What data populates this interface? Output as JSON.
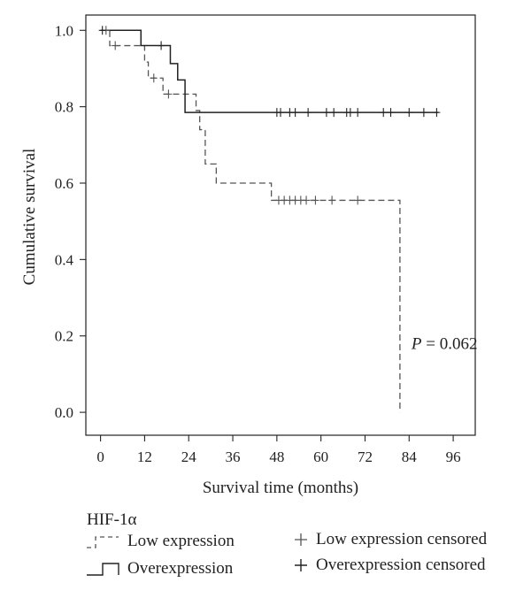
{
  "chart_data": {
    "type": "line",
    "subtype": "kaplan-meier",
    "xlabel": "Survival time (months)",
    "ylabel": "Cumulative survival",
    "xlim": [
      -4,
      102
    ],
    "ylim": [
      -0.06,
      1.04
    ],
    "xticks": [
      0,
      12,
      24,
      36,
      48,
      60,
      72,
      84,
      96
    ],
    "yticks": [
      0.0,
      0.2,
      0.4,
      0.6,
      0.8,
      1.0
    ],
    "ytick_labels": [
      "0.0",
      "0.2",
      "0.4",
      "0.6",
      "0.8",
      "1.0"
    ],
    "grid": false,
    "annotation": {
      "prefix": "P",
      "text": " = 0.062",
      "x": 81.5,
      "y": 0.18
    },
    "legend": {
      "title": "HIF-1α",
      "position": "bottom",
      "entries": [
        {
          "label": "Low expression",
          "symbol": "step",
          "series": 0
        },
        {
          "label": "Low expression censored",
          "symbol": "cross",
          "series": 0
        },
        {
          "label": "Overexpression",
          "symbol": "step",
          "series": 1
        },
        {
          "label": "Overexpression censored",
          "symbol": "cross",
          "series": 1
        }
      ]
    },
    "series": [
      {
        "name": "Low expression",
        "style": "dashed",
        "color": "#555555",
        "steps": [
          [
            0,
            1.0
          ],
          [
            2.5,
            0.96
          ],
          [
            12,
            0.917
          ],
          [
            13,
            0.875
          ],
          [
            17,
            0.833
          ],
          [
            26,
            0.79
          ],
          [
            27,
            0.74
          ],
          [
            28.5,
            0.65
          ],
          [
            31.5,
            0.6
          ],
          [
            46.5,
            0.555
          ],
          [
            81.5,
            0.0
          ]
        ],
        "censored": [
          [
            1.5,
            1.0
          ],
          [
            4,
            0.96
          ],
          [
            14.5,
            0.875
          ],
          [
            18.5,
            0.833
          ],
          [
            48.5,
            0.555
          ],
          [
            50,
            0.555
          ],
          [
            51.5,
            0.555
          ],
          [
            53,
            0.555
          ],
          [
            54.5,
            0.555
          ],
          [
            56,
            0.555
          ],
          [
            58.5,
            0.555
          ],
          [
            63,
            0.555
          ],
          [
            70,
            0.555
          ]
        ]
      },
      {
        "name": "Overexpression",
        "style": "solid",
        "color": "#222222",
        "steps": [
          [
            0,
            1.0
          ],
          [
            11,
            0.96
          ],
          [
            19,
            0.913
          ],
          [
            21,
            0.87
          ],
          [
            23,
            0.785
          ],
          [
            92,
            0.785
          ]
        ],
        "censored": [
          [
            0.5,
            1.0
          ],
          [
            16.5,
            0.96
          ],
          [
            48,
            0.785
          ],
          [
            49,
            0.785
          ],
          [
            51.5,
            0.785
          ],
          [
            53,
            0.785
          ],
          [
            56.5,
            0.785
          ],
          [
            61.5,
            0.785
          ],
          [
            63.5,
            0.785
          ],
          [
            67,
            0.785
          ],
          [
            68,
            0.785
          ],
          [
            70,
            0.785
          ],
          [
            77,
            0.785
          ],
          [
            79,
            0.785
          ],
          [
            84,
            0.785
          ],
          [
            88,
            0.785
          ],
          [
            91.5,
            0.785
          ]
        ]
      }
    ]
  }
}
